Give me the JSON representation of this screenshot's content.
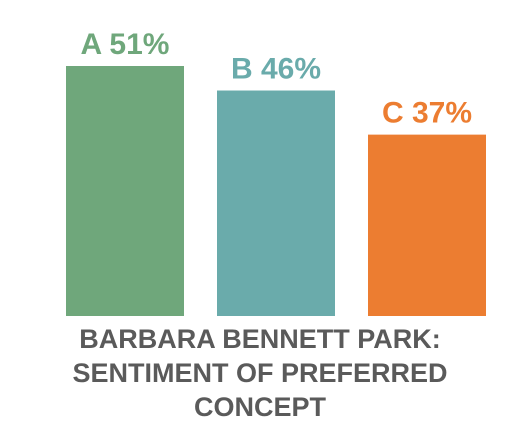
{
  "chart_data": {
    "type": "bar",
    "title": "BARBARA BENNETT PARK: SENTIMENT OF PREFERRED CONCEPT",
    "categories": [
      "A",
      "B",
      "C"
    ],
    "values": [
      51,
      46,
      37
    ],
    "value_labels": [
      "51%",
      "46%",
      "37%"
    ],
    "colors": [
      "#6fa77b",
      "#6aabab",
      "#ec7d31"
    ]
  }
}
